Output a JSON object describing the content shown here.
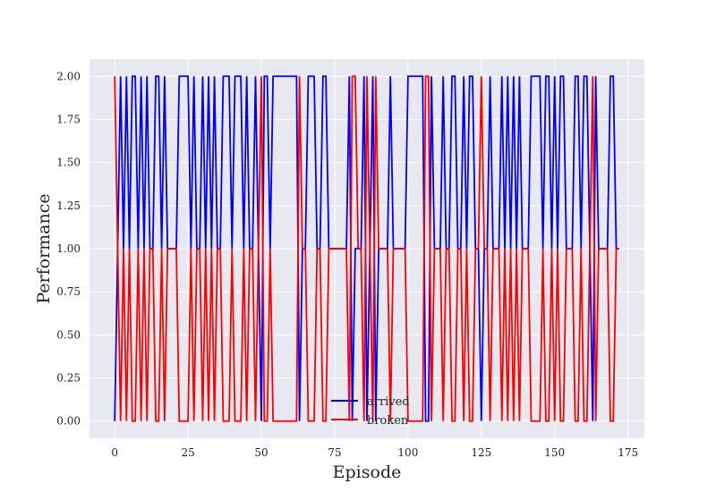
{
  "chart_data": {
    "type": "line",
    "title": "",
    "xlabel": "Episode",
    "ylabel": "Performance",
    "xlim": [
      -8.6,
      180.6
    ],
    "ylim": [
      -0.1,
      2.1
    ],
    "xticks": [
      0,
      25,
      50,
      75,
      100,
      125,
      150,
      175
    ],
    "xtick_labels": [
      "0",
      "25",
      "50",
      "75",
      "100",
      "125",
      "150",
      "175"
    ],
    "yticks": [
      0,
      0.25,
      0.5,
      0.75,
      1,
      1.25,
      1.5,
      1.75,
      2
    ],
    "ytick_labels": [
      "0.00",
      "0.25",
      "0.50",
      "0.75",
      "1.00",
      "1.25",
      "1.50",
      "1.75",
      "2.00"
    ],
    "grid": true,
    "legend_position": "bottom-center",
    "background": "#e8e8f0",
    "series": [
      {
        "name": "arrived",
        "color": "#0000ff",
        "x": [
          0,
          1,
          2,
          3,
          4,
          5,
          6,
          7,
          8,
          9,
          10,
          11,
          12,
          13,
          14,
          15,
          16,
          17,
          18,
          19,
          20,
          21,
          22,
          23,
          24,
          25,
          26,
          27,
          28,
          29,
          30,
          31,
          32,
          33,
          34,
          35,
          36,
          37,
          38,
          39,
          40,
          41,
          42,
          43,
          44,
          45,
          46,
          47,
          48,
          49,
          50,
          51,
          52,
          53,
          54,
          55,
          56,
          57,
          58,
          59,
          60,
          61,
          62,
          63,
          64,
          65,
          66,
          67,
          68,
          69,
          70,
          71,
          72,
          73,
          74,
          75,
          76,
          77,
          78,
          79,
          80,
          81,
          82,
          83,
          84,
          85,
          86,
          87,
          88,
          89,
          90,
          91,
          92,
          93,
          94,
          95,
          96,
          97,
          98,
          99,
          100,
          101,
          102,
          103,
          104,
          105,
          106,
          107,
          108,
          109,
          110,
          111,
          112,
          113,
          114,
          115,
          116,
          117,
          118,
          119,
          120,
          121,
          122,
          123,
          124,
          125,
          126,
          127,
          128,
          129,
          130,
          131,
          132,
          133,
          134,
          135,
          136,
          137,
          138,
          139,
          140,
          141,
          142,
          143,
          144,
          145,
          146,
          147,
          148,
          149,
          150,
          151,
          152,
          153,
          154,
          155,
          156,
          157,
          158,
          159,
          160,
          161,
          162,
          163,
          164,
          165,
          166,
          167,
          168,
          169,
          170,
          171,
          172
        ],
        "values": [
          0,
          1,
          2,
          1,
          2,
          1,
          2,
          2,
          1,
          2,
          1,
          2,
          1,
          1,
          2,
          2,
          1,
          2,
          1,
          1,
          1,
          1,
          2,
          2,
          2,
          2,
          1,
          2,
          1,
          1,
          2,
          1,
          2,
          1,
          2,
          1,
          1,
          2,
          2,
          2,
          1,
          2,
          2,
          2,
          1,
          2,
          1,
          1,
          2,
          1,
          0,
          2,
          2,
          1,
          2,
          2,
          2,
          2,
          2,
          2,
          2,
          2,
          2,
          0,
          1,
          1,
          2,
          2,
          2,
          1,
          1,
          2,
          2,
          1,
          1,
          1,
          1,
          1,
          1,
          1,
          2,
          0,
          1,
          1,
          1,
          2,
          0,
          1,
          2,
          0,
          1,
          1,
          1,
          1,
          2,
          1,
          1,
          1,
          1,
          1,
          2,
          2,
          2,
          2,
          2,
          2,
          0,
          0,
          2,
          1,
          1,
          1,
          2,
          1,
          1,
          2,
          2,
          1,
          1,
          2,
          1,
          2,
          2,
          1,
          1,
          0,
          1,
          1,
          2,
          1,
          1,
          1,
          2,
          1,
          2,
          1,
          2,
          1,
          2,
          1,
          1,
          1,
          2,
          2,
          2,
          2,
          1,
          2,
          2,
          1,
          2,
          1,
          2,
          2,
          1,
          1,
          1,
          2,
          2,
          1,
          2,
          2,
          1,
          0,
          2,
          1,
          1,
          1,
          1,
          2,
          2,
          1,
          1
        ],
        "legend_order": 0
      },
      {
        "name": "broken",
        "color": "#ff0000",
        "x": [
          0,
          1,
          2,
          3,
          4,
          5,
          6,
          7,
          8,
          9,
          10,
          11,
          12,
          13,
          14,
          15,
          16,
          17,
          18,
          19,
          20,
          21,
          22,
          23,
          24,
          25,
          26,
          27,
          28,
          29,
          30,
          31,
          32,
          33,
          34,
          35,
          36,
          37,
          38,
          39,
          40,
          41,
          42,
          43,
          44,
          45,
          46,
          47,
          48,
          49,
          50,
          51,
          52,
          53,
          54,
          55,
          56,
          57,
          58,
          59,
          60,
          61,
          62,
          63,
          64,
          65,
          66,
          67,
          68,
          69,
          70,
          71,
          72,
          73,
          74,
          75,
          76,
          77,
          78,
          79,
          80,
          81,
          82,
          83,
          84,
          85,
          86,
          87,
          88,
          89,
          90,
          91,
          92,
          93,
          94,
          95,
          96,
          97,
          98,
          99,
          100,
          101,
          102,
          103,
          104,
          105,
          106,
          107,
          108,
          109,
          110,
          111,
          112,
          113,
          114,
          115,
          116,
          117,
          118,
          119,
          120,
          121,
          122,
          123,
          124,
          125,
          126,
          127,
          128,
          129,
          130,
          131,
          132,
          133,
          134,
          135,
          136,
          137,
          138,
          139,
          140,
          141,
          142,
          143,
          144,
          145,
          146,
          147,
          148,
          149,
          150,
          151,
          152,
          153,
          154,
          155,
          156,
          157,
          158,
          159,
          160,
          161,
          162,
          163,
          164,
          165,
          166,
          167,
          168,
          169,
          170,
          171,
          172
        ],
        "values": [
          2,
          1,
          0,
          1,
          0,
          1,
          0,
          0,
          1,
          0,
          1,
          0,
          1,
          1,
          0,
          0,
          1,
          0,
          1,
          1,
          1,
          1,
          0,
          0,
          0,
          0,
          1,
          0,
          1,
          1,
          0,
          1,
          0,
          1,
          0,
          1,
          1,
          0,
          0,
          0,
          1,
          0,
          0,
          0,
          1,
          0,
          1,
          1,
          0,
          1,
          2,
          0,
          0,
          1,
          0,
          0,
          0,
          0,
          0,
          0,
          0,
          0,
          0,
          2,
          1,
          1,
          0,
          0,
          0,
          1,
          1,
          0,
          0,
          1,
          1,
          1,
          1,
          1,
          1,
          1,
          0,
          2,
          2,
          1,
          1,
          0,
          2,
          1,
          0,
          2,
          1,
          1,
          1,
          1,
          0,
          1,
          1,
          1,
          1,
          1,
          0,
          0,
          0,
          0,
          0,
          0,
          2,
          2,
          0,
          1,
          1,
          1,
          0,
          1,
          1,
          0,
          0,
          1,
          1,
          0,
          1,
          0,
          0,
          1,
          1,
          2,
          1,
          1,
          0,
          1,
          1,
          1,
          0,
          1,
          0,
          1,
          0,
          1,
          0,
          1,
          1,
          1,
          0,
          0,
          0,
          0,
          1,
          0,
          0,
          1,
          0,
          1,
          0,
          0,
          1,
          1,
          1,
          0,
          0,
          1,
          0,
          0,
          1,
          2,
          0,
          1,
          1,
          1,
          1,
          0,
          0,
          1,
          1
        ],
        "legend_order": 1
      }
    ]
  }
}
